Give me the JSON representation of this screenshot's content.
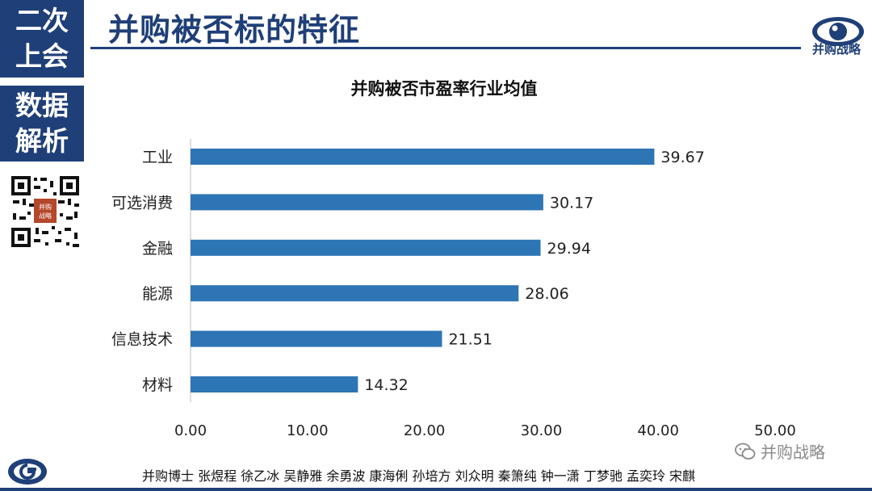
{
  "sidebar": {
    "top_line1": "二次",
    "top_line2": "上会",
    "bottom_line1": "数据",
    "bottom_line2": "解析"
  },
  "header": {
    "title": "并购被否标的特征",
    "logo_text": "并购战略"
  },
  "chart_data": {
    "type": "bar",
    "orientation": "horizontal",
    "title": "并购被否市盈率行业均值",
    "categories": [
      "工业",
      "可选消费",
      "金融",
      "能源",
      "信息技术",
      "材料"
    ],
    "values": [
      39.67,
      30.17,
      29.94,
      28.06,
      21.51,
      14.32
    ],
    "value_labels": [
      "39.67",
      "30.17",
      "29.94",
      "28.06",
      "21.51",
      "14.32"
    ],
    "xlim": [
      0,
      50
    ],
    "xticks": [
      "0.00",
      "10.00",
      "20.00",
      "30.00",
      "40.00",
      "50.00"
    ],
    "xlabel": "",
    "ylabel": "",
    "bar_color": "#2e75b6",
    "grid": false,
    "legend": false
  },
  "footer": {
    "authors": "并购博士 张煜程 徐乙冰 吴静雅 余勇波 康海俐 孙培方 刘众明 秦箫纯 钟一潇 丁梦驰 孟奕玲 宋麒",
    "watermark": "并购战略",
    "qr_stamp": "并购战略"
  },
  "colors": {
    "brand": "#1f3f78",
    "bar": "#2e75b6"
  }
}
